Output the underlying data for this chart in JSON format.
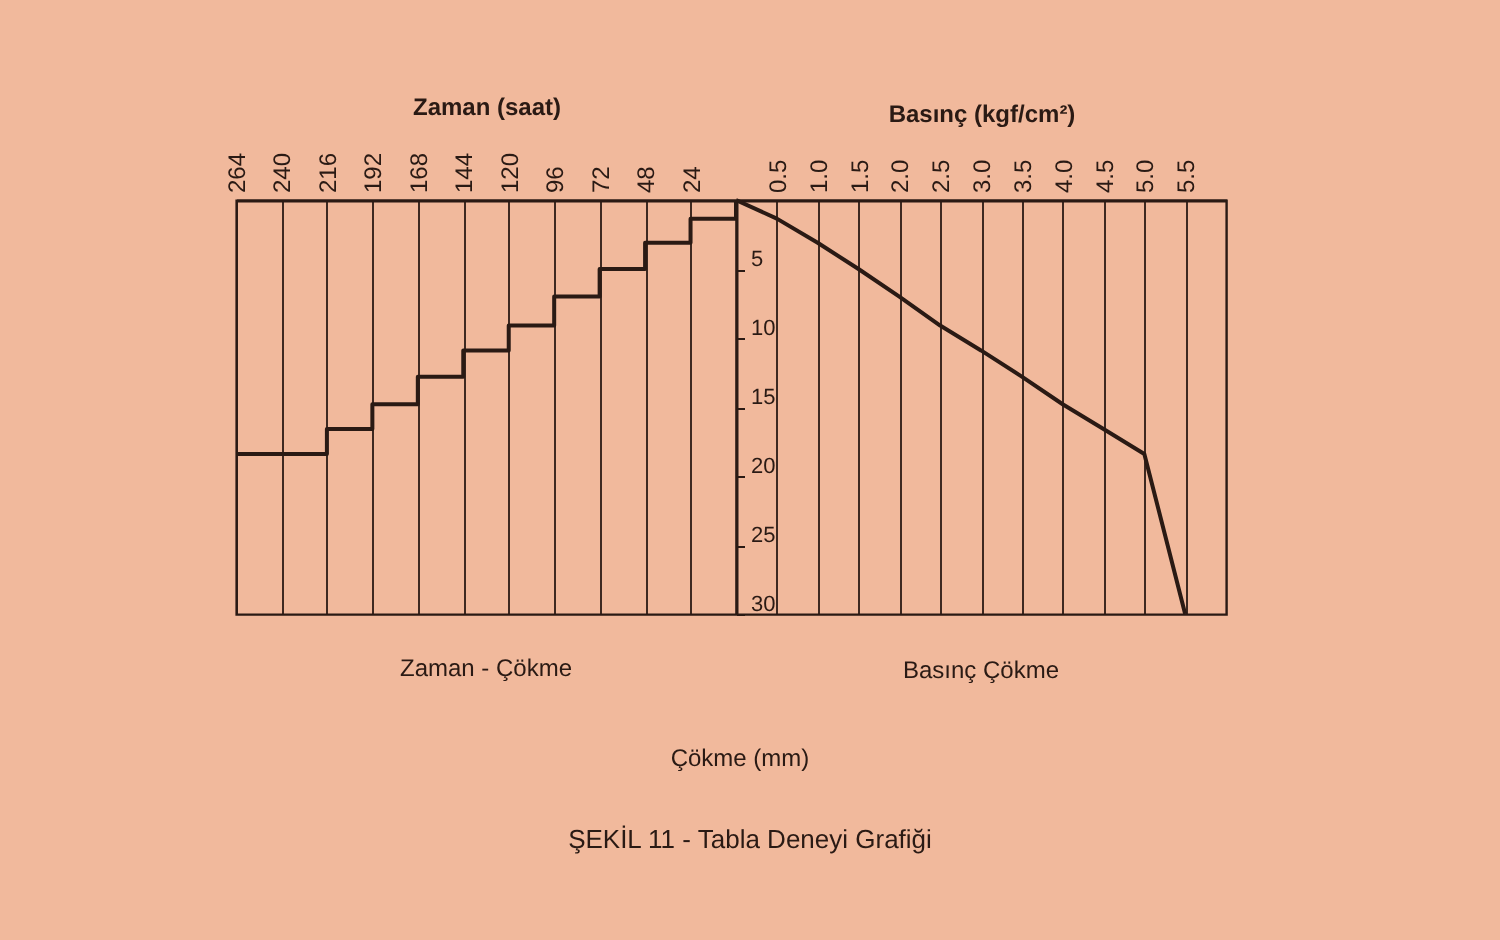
{
  "chart_data": [
    {
      "type": "step",
      "title": "Zaman - Çökme",
      "xlabel": "Zaman (saat)",
      "x": [
        0,
        24,
        48,
        72,
        96,
        120,
        144,
        168,
        192,
        216,
        240,
        264
      ],
      "values": [
        0,
        1.35,
        3.1,
        5.0,
        7.0,
        9.1,
        10.9,
        12.8,
        14.8,
        16.6,
        18.4,
        18.4
      ],
      "color": "#2a1a14",
      "xlim": [
        264,
        0
      ],
      "xticks": [
        24,
        48,
        72,
        96,
        120,
        144,
        168,
        192,
        216,
        240,
        264
      ],
      "ylim": [
        30,
        0
      ],
      "yticks": [
        5,
        10,
        15,
        20,
        25,
        30
      ],
      "tick_labels": "x",
      "grid": "x",
      "annotations": [
        "ŞEKİL 11 - Tabla Deneyi Grafiği"
      ]
    },
    {
      "type": "line",
      "title": "Basınç Çökme",
      "xlabel": "Basınç (kgf/cm²)",
      "ylabel": "Çökme (mm)",
      "x": [
        0,
        0.5,
        1.0,
        1.5,
        2.0,
        2.5,
        3.0,
        3.5,
        4.0,
        4.5,
        5.0,
        5.5
      ],
      "values": [
        0,
        1.35,
        3.1,
        5.0,
        7.0,
        9.1,
        10.9,
        12.8,
        14.8,
        16.6,
        18.4,
        30
      ],
      "color": "#2a1a14",
      "xlim": [
        0,
        6
      ],
      "xticks": [
        0.5,
        {
          "value": 1,
          "label": "1.0"
        },
        1.5,
        {
          "value": 2,
          "label": "2.0"
        },
        2.5,
        {
          "value": 3,
          "label": "3.0"
        },
        3.5,
        {
          "value": 4,
          "label": "4.0"
        },
        4.5,
        {
          "value": 5,
          "label": "5.0"
        },
        5.5
      ],
      "ylim": [
        30,
        0
      ],
      "yticks": [
        5,
        10,
        15,
        20,
        25,
        30
      ],
      "grid": "x"
    }
  ]
}
